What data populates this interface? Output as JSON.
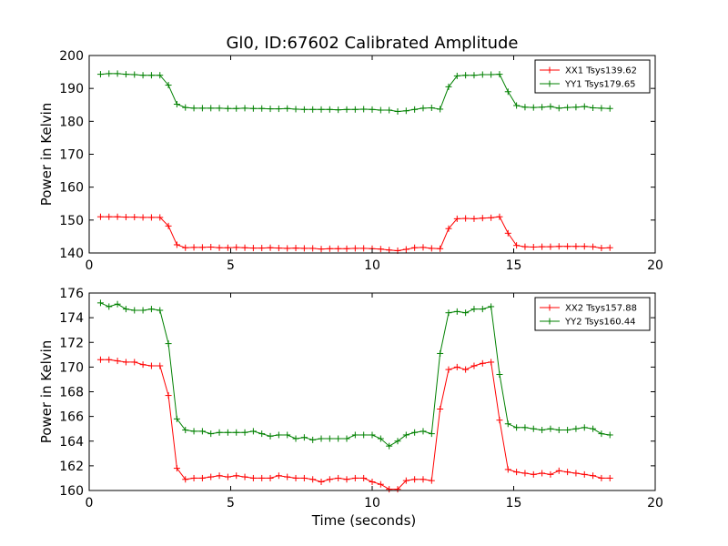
{
  "chart_data": [
    {
      "type": "line",
      "title": "Gl0, ID:67602 Calibrated Amplitude",
      "xlabel": "",
      "ylabel": "Power in Kelvin",
      "xlim": [
        0,
        20
      ],
      "ylim": [
        140,
        200
      ],
      "xticks": [
        0,
        5,
        10,
        15,
        20
      ],
      "yticks": [
        140,
        150,
        160,
        170,
        180,
        190,
        200
      ],
      "grid": false,
      "legend": "top-right",
      "x": [
        0.4,
        0.7,
        1.0,
        1.3,
        1.6,
        1.9,
        2.2,
        2.5,
        2.8,
        3.1,
        3.4,
        3.7,
        4.0,
        4.3,
        4.6,
        4.9,
        5.2,
        5.5,
        5.8,
        6.1,
        6.4,
        6.7,
        7.0,
        7.3,
        7.6,
        7.9,
        8.2,
        8.5,
        8.8,
        9.1,
        9.4,
        9.7,
        10.0,
        10.3,
        10.6,
        10.9,
        11.2,
        11.5,
        11.8,
        12.1,
        12.4,
        12.7,
        13.0,
        13.3,
        13.6,
        13.9,
        14.2,
        14.5,
        14.8,
        15.1,
        15.4,
        15.7,
        16.0,
        16.3,
        16.6,
        16.9,
        17.2,
        17.5,
        17.8,
        18.1,
        18.4
      ],
      "series": [
        {
          "name": "XX1 Tsys139.62",
          "color": "#ff0000",
          "values": [
            151.0,
            151.0,
            151.0,
            150.9,
            150.9,
            150.8,
            150.8,
            150.8,
            148.2,
            142.5,
            141.6,
            141.7,
            141.7,
            141.8,
            141.6,
            141.6,
            141.7,
            141.6,
            141.5,
            141.5,
            141.6,
            141.5,
            141.4,
            141.5,
            141.4,
            141.4,
            141.2,
            141.3,
            141.3,
            141.3,
            141.4,
            141.4,
            141.3,
            141.2,
            140.9,
            140.7,
            141.1,
            141.6,
            141.7,
            141.4,
            141.3,
            147.4,
            150.4,
            150.5,
            150.4,
            150.6,
            150.7,
            151.0,
            146.0,
            142.3,
            141.9,
            141.8,
            141.9,
            141.9,
            142.0,
            142.0,
            142.0,
            142.0,
            141.9,
            141.5,
            141.6
          ]
        },
        {
          "name": "YY1 Tsys179.65",
          "color": "#008000",
          "values": [
            194.3,
            194.5,
            194.5,
            194.3,
            194.2,
            194.0,
            194.0,
            194.0,
            191.0,
            185.2,
            184.2,
            184.0,
            184.0,
            184.0,
            184.0,
            183.9,
            183.9,
            184.0,
            183.9,
            183.9,
            183.8,
            183.8,
            183.9,
            183.7,
            183.6,
            183.6,
            183.6,
            183.6,
            183.5,
            183.6,
            183.6,
            183.7,
            183.6,
            183.4,
            183.4,
            183.0,
            183.2,
            183.6,
            184.0,
            184.1,
            183.7,
            190.5,
            193.8,
            194.0,
            194.0,
            194.2,
            194.2,
            194.3,
            189.0,
            184.8,
            184.3,
            184.2,
            184.3,
            184.5,
            184.0,
            184.2,
            184.3,
            184.5,
            184.1,
            184.0,
            183.9
          ]
        }
      ]
    },
    {
      "type": "line",
      "title": "",
      "xlabel": "Time (seconds)",
      "ylabel": "Power in Kelvin",
      "xlim": [
        0,
        20
      ],
      "ylim": [
        160,
        176
      ],
      "xticks": [
        0,
        5,
        10,
        15,
        20
      ],
      "yticks": [
        160,
        162,
        164,
        166,
        168,
        170,
        172,
        174,
        176
      ],
      "grid": false,
      "legend": "top-right",
      "x": [
        0.4,
        0.7,
        1.0,
        1.3,
        1.6,
        1.9,
        2.2,
        2.5,
        2.8,
        3.1,
        3.4,
        3.7,
        4.0,
        4.3,
        4.6,
        4.9,
        5.2,
        5.5,
        5.8,
        6.1,
        6.4,
        6.7,
        7.0,
        7.3,
        7.6,
        7.9,
        8.2,
        8.5,
        8.8,
        9.1,
        9.4,
        9.7,
        10.0,
        10.3,
        10.6,
        10.9,
        11.2,
        11.5,
        11.8,
        12.1,
        12.4,
        12.7,
        13.0,
        13.3,
        13.6,
        13.9,
        14.2,
        14.5,
        14.8,
        15.1,
        15.4,
        15.7,
        16.0,
        16.3,
        16.6,
        16.9,
        17.2,
        17.5,
        17.8,
        18.1,
        18.4
      ],
      "series": [
        {
          "name": "XX2 Tsys157.88",
          "color": "#ff0000",
          "values": [
            170.6,
            170.6,
            170.5,
            170.4,
            170.4,
            170.2,
            170.1,
            170.1,
            167.7,
            161.8,
            160.9,
            161.0,
            161.0,
            161.1,
            161.2,
            161.1,
            161.2,
            161.1,
            161.0,
            161.0,
            161.0,
            161.2,
            161.1,
            161.0,
            161.0,
            160.9,
            160.7,
            160.9,
            161.0,
            160.9,
            161.0,
            161.0,
            160.7,
            160.5,
            160.1,
            160.1,
            160.8,
            160.9,
            160.9,
            160.8,
            166.6,
            169.8,
            170.0,
            169.8,
            170.1,
            170.3,
            170.4,
            165.7,
            161.7,
            161.5,
            161.4,
            161.3,
            161.4,
            161.3,
            161.6,
            161.5,
            161.4,
            161.3,
            161.2,
            161.0,
            161.0
          ]
        },
        {
          "name": "YY2 Tsys160.44",
          "color": "#008000",
          "values": [
            175.2,
            174.9,
            175.1,
            174.7,
            174.6,
            174.6,
            174.7,
            174.6,
            171.9,
            165.8,
            164.9,
            164.8,
            164.8,
            164.6,
            164.7,
            164.7,
            164.7,
            164.7,
            164.8,
            164.6,
            164.4,
            164.5,
            164.5,
            164.2,
            164.3,
            164.1,
            164.2,
            164.2,
            164.2,
            164.2,
            164.5,
            164.5,
            164.5,
            164.2,
            163.6,
            164.0,
            164.5,
            164.7,
            164.8,
            164.6,
            171.1,
            174.4,
            174.5,
            174.4,
            174.7,
            174.7,
            174.9,
            169.4,
            165.4,
            165.1,
            165.1,
            165.0,
            164.9,
            165.0,
            164.9,
            164.9,
            165.0,
            165.1,
            165.0,
            164.6,
            164.5
          ]
        }
      ]
    }
  ]
}
